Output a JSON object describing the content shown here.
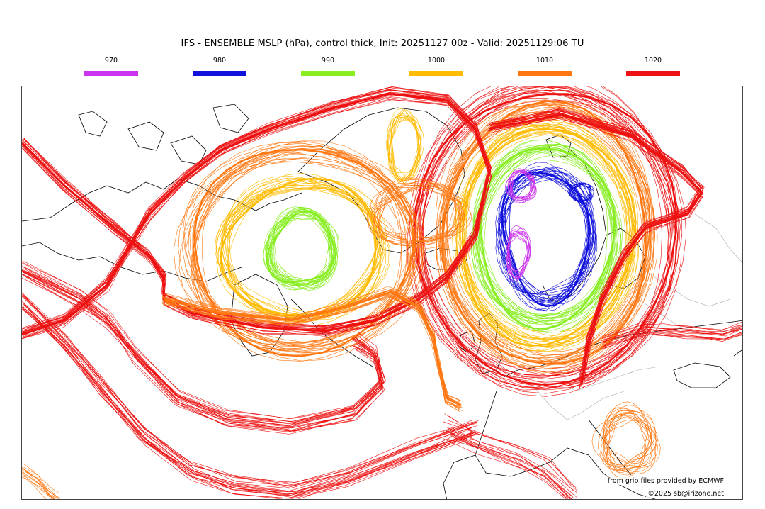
{
  "header": {
    "title": "IFS - ENSEMBLE MSLP (hPa), control thick, Init: 20251127 00z - Valid: 20251129:06 TU"
  },
  "legend": [
    {
      "label": "970",
      "color": "#cc33ee"
    },
    {
      "label": "980",
      "color": "#1111dd"
    },
    {
      "label": "990",
      "color": "#88ee22"
    },
    {
      "label": "1000",
      "color": "#ffbb00"
    },
    {
      "label": "1010",
      "color": "#ff7711"
    },
    {
      "label": "1020",
      "color": "#ee1111"
    }
  ],
  "map": {
    "coastline_color": "#000000",
    "border_color": "#999999"
  },
  "credits": {
    "source": "from grib files provided by ECMWF",
    "copyright": "©2025 sb@irizone.net"
  }
}
